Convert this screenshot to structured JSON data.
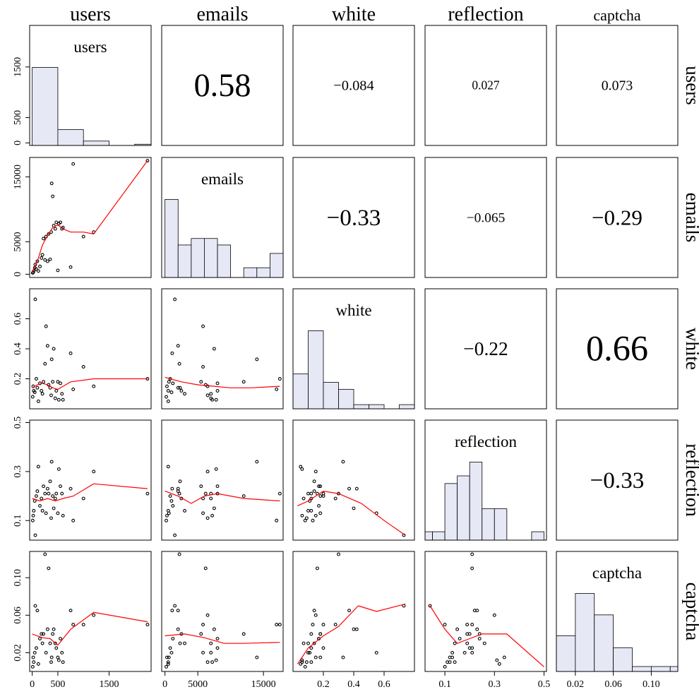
{
  "chart_data": {
    "type": "scatter",
    "subtype": "scatterplot-matrix",
    "variables": [
      "users",
      "emails",
      "white",
      "reflection",
      "captcha"
    ],
    "colors": {
      "histogram_fill": "#e6e8f6",
      "smoother": "#ff0000",
      "frame": "#000000",
      "points": "#000000"
    },
    "axes": {
      "users": {
        "range": [
          -50,
          2320
        ],
        "ticks": [
          0,
          500,
          1500
        ],
        "tick_labels": [
          "0",
          "500",
          "1500"
        ],
        "bottom_ticks": [
          0,
          500,
          1500
        ],
        "bottom_tick_labels": [
          "0",
          "500",
          "1500"
        ]
      },
      "emails": {
        "range": [
          -500,
          18000
        ],
        "ticks": [
          0,
          5000,
          15000
        ],
        "tick_labels": [
          "0",
          "5000",
          "15000"
        ],
        "bottom_ticks": [
          0,
          5000,
          15000
        ],
        "bottom_tick_labels": [
          "0",
          "5000",
          "15000"
        ]
      },
      "white": {
        "range": [
          0,
          0.8
        ],
        "ticks": [
          0.2,
          0.4,
          0.6
        ],
        "tick_labels": [
          "0.2",
          "0.4",
          "0.6"
        ],
        "bottom_ticks": [
          0.2,
          0.4,
          0.6
        ],
        "bottom_tick_labels": [
          "0.2",
          "0.4",
          "0.6"
        ]
      },
      "reflection": {
        "range": [
          0.02,
          0.51
        ],
        "ticks": [
          0.1,
          0.3,
          0.5
        ],
        "tick_labels": [
          "0.1",
          "0.3",
          "0.5"
        ],
        "bottom_ticks": [
          0.1,
          0.3,
          0.5
        ],
        "bottom_tick_labels": [
          "0.1",
          "0.3",
          "0.5"
        ]
      },
      "captcha": {
        "range": [
          0.0,
          0.128
        ],
        "ticks": [
          0.02,
          0.06,
          0.1
        ],
        "tick_labels": [
          "0.02",
          "0.06",
          "0.10"
        ],
        "bottom_ticks": [
          0.02,
          0.06,
          0.1
        ],
        "bottom_tick_labels": [
          "0.02",
          "0.06",
          "0.10"
        ]
      }
    },
    "histograms": {
      "users": {
        "edges": [
          0,
          500,
          1000,
          1500,
          2000,
          2500
        ],
        "heights": [
          1600,
          325,
          90,
          0,
          25
        ]
      },
      "emails": {
        "edges": [
          0,
          2000,
          4000,
          6000,
          8000,
          10000,
          12000,
          14000,
          16000,
          18000
        ],
        "heights": [
          12,
          5,
          6,
          6,
          5,
          0,
          1.5,
          1.5,
          3.7
        ]
      },
      "white": {
        "edges": [
          0.0,
          0.1,
          0.2,
          0.3,
          0.4,
          0.5,
          0.6,
          0.7,
          0.8
        ],
        "heights": [
          5,
          11.2,
          3.8,
          2.8,
          0.6,
          0.6,
          0,
          0.6
        ]
      },
      "reflection": {
        "edges": [
          0.0,
          0.05,
          0.1,
          0.15,
          0.2,
          0.25,
          0.3,
          0.35,
          0.4,
          0.45,
          0.5
        ],
        "heights": [
          1.1,
          1.1,
          7.4,
          8.4,
          10.2,
          4.1,
          4.1,
          0,
          0,
          1.1
        ]
      },
      "captcha": {
        "edges": [
          0.0,
          0.02,
          0.04,
          0.06,
          0.08,
          0.1,
          0.12,
          0.14
        ],
        "heights": [
          6.5,
          14.2,
          10.3,
          4.3,
          0.9,
          0.9,
          0.9
        ]
      }
    },
    "correlations": [
      {
        "row": "users",
        "col": "emails",
        "value": "0.58"
      },
      {
        "row": "users",
        "col": "white",
        "value": "−0.084"
      },
      {
        "row": "users",
        "col": "reflection",
        "value": "0.027"
      },
      {
        "row": "users",
        "col": "captcha",
        "value": "0.073"
      },
      {
        "row": "emails",
        "col": "white",
        "value": "−0.33"
      },
      {
        "row": "emails",
        "col": "reflection",
        "value": "−0.065"
      },
      {
        "row": "emails",
        "col": "captcha",
        "value": "−0.29"
      },
      {
        "row": "white",
        "col": "reflection",
        "value": "−0.22"
      },
      {
        "row": "white",
        "col": "captcha",
        "value": "0.66"
      },
      {
        "row": "reflection",
        "col": "captcha",
        "value": "−0.33"
      }
    ],
    "observations": [
      {
        "users": 10,
        "emails": 200,
        "white": 0.08,
        "reflection": 0.1,
        "captcha": 0.005
      },
      {
        "users": 30,
        "emails": 500,
        "white": 0.12,
        "reflection": 0.14,
        "captcha": 0.01
      },
      {
        "users": 50,
        "emails": 1000,
        "white": 0.11,
        "reflection": 0.18,
        "captcha": 0.02
      },
      {
        "users": 20,
        "emails": 300,
        "white": 0.15,
        "reflection": 0.12,
        "captcha": 0.015
      },
      {
        "users": 80,
        "emails": 800,
        "white": 0.2,
        "reflection": 0.2,
        "captcha": 0.025
      },
      {
        "users": 60,
        "emails": 1500,
        "white": 0.73,
        "reflection": 0.04,
        "captcha": 0.07
      },
      {
        "users": 100,
        "emails": 2000,
        "white": 0.14,
        "reflection": 0.22,
        "captcha": 0.065
      },
      {
        "users": 120,
        "emails": 500,
        "white": 0.05,
        "reflection": 0.32,
        "captcha": 0.008
      },
      {
        "users": 150,
        "emails": 1200,
        "white": 0.17,
        "reflection": 0.16,
        "captcha": 0.035
      },
      {
        "users": 180,
        "emails": 2500,
        "white": 0.12,
        "reflection": 0.19,
        "captcha": 0.04
      },
      {
        "users": 200,
        "emails": 3000,
        "white": 0.1,
        "reflection": 0.14,
        "captcha": 0.03
      },
      {
        "users": 220,
        "emails": 5500,
        "white": 0.18,
        "reflection": 0.24,
        "captcha": 0.04
      },
      {
        "users": 250,
        "emails": 2200,
        "white": 0.3,
        "reflection": 0.21,
        "captcha": 0.125
      },
      {
        "users": 270,
        "emails": 5800,
        "white": 0.55,
        "reflection": 0.13,
        "captcha": 0.02
      },
      {
        "users": 300,
        "emails": 2000,
        "white": 0.42,
        "reflection": 0.23,
        "captcha": 0.045
      },
      {
        "users": 320,
        "emails": 6200,
        "white": 0.16,
        "reflection": 0.21,
        "captcha": 0.11
      },
      {
        "users": 350,
        "emails": 2300,
        "white": 0.14,
        "reflection": 0.26,
        "captcha": 0.03
      },
      {
        "users": 370,
        "emails": 6500,
        "white": 0.09,
        "reflection": 0.11,
        "captcha": 0.01
      },
      {
        "users": 380,
        "emails": 14000,
        "white": 0.33,
        "reflection": 0.34,
        "captcha": 0.015
      },
      {
        "users": 400,
        "emails": 12000,
        "white": 0.18,
        "reflection": 0.2,
        "captcha": 0.04
      },
      {
        "users": 420,
        "emails": 7500,
        "white": 0.4,
        "reflection": 0.15,
        "captcha": 0.045
      },
      {
        "users": 450,
        "emails": 7000,
        "white": 0.07,
        "reflection": 0.19,
        "captcha": 0.03
      },
      {
        "users": 470,
        "emails": 8000,
        "white": 0.12,
        "reflection": 0.21,
        "captcha": 0.025
      },
      {
        "users": 500,
        "emails": 600,
        "white": 0.18,
        "reflection": 0.13,
        "captcha": 0.015
      },
      {
        "users": 520,
        "emails": 7800,
        "white": 0.06,
        "reflection": 0.31,
        "captcha": 0.012
      },
      {
        "users": 550,
        "emails": 8000,
        "white": 0.17,
        "reflection": 0.24,
        "captcha": 0.035
      },
      {
        "users": 580,
        "emails": 7000,
        "white": 0.1,
        "reflection": 0.21,
        "captcha": 0.02
      },
      {
        "users": 600,
        "emails": 7200,
        "white": 0.06,
        "reflection": 0.12,
        "captcha": 0.01
      },
      {
        "users": 750,
        "emails": 1100,
        "white": 0.37,
        "reflection": 0.23,
        "captcha": 0.065
      },
      {
        "users": 800,
        "emails": 17000,
        "white": 0.13,
        "reflection": 0.1,
        "captcha": 0.05
      },
      {
        "users": 1000,
        "emails": 5800,
        "white": 0.28,
        "reflection": 0.19,
        "captcha": 0.05
      },
      {
        "users": 1200,
        "emails": 6500,
        "white": 0.15,
        "reflection": 0.3,
        "captcha": 0.06
      },
      {
        "users": 2250,
        "emails": 17500,
        "white": 0.2,
        "reflection": 0.21,
        "captcha": 0.05
      }
    ],
    "smoothers": {
      "users": {
        "emails": [
          [
            0,
            300
          ],
          [
            100,
            2000
          ],
          [
            200,
            4500
          ],
          [
            300,
            6000
          ],
          [
            400,
            7200
          ],
          [
            500,
            7600
          ],
          [
            600,
            7000
          ],
          [
            750,
            6500
          ],
          [
            1000,
            6500
          ],
          [
            1200,
            6200
          ],
          [
            2250,
            17500
          ]
        ],
        "white": [
          [
            0,
            0.14
          ],
          [
            100,
            0.16
          ],
          [
            200,
            0.17
          ],
          [
            300,
            0.16
          ],
          [
            400,
            0.14
          ],
          [
            500,
            0.13
          ],
          [
            750,
            0.18
          ],
          [
            1200,
            0.2
          ],
          [
            2250,
            0.2
          ]
        ],
        "reflection": [
          [
            0,
            0.19
          ],
          [
            150,
            0.18
          ],
          [
            300,
            0.19
          ],
          [
            450,
            0.18
          ],
          [
            600,
            0.19
          ],
          [
            800,
            0.2
          ],
          [
            1200,
            0.25
          ],
          [
            2250,
            0.23
          ]
        ],
        "captcha": [
          [
            0,
            0.04
          ],
          [
            200,
            0.036
          ],
          [
            350,
            0.035
          ],
          [
            500,
            0.028
          ],
          [
            750,
            0.045
          ],
          [
            1200,
            0.063
          ],
          [
            2250,
            0.053
          ]
        ]
      },
      "emails": {
        "white": [
          [
            0,
            0.21
          ],
          [
            2500,
            0.18
          ],
          [
            5000,
            0.16
          ],
          [
            7500,
            0.15
          ],
          [
            10000,
            0.14
          ],
          [
            13000,
            0.14
          ],
          [
            17500,
            0.15
          ]
        ],
        "reflection": [
          [
            0,
            0.22
          ],
          [
            2000,
            0.2
          ],
          [
            4000,
            0.17
          ],
          [
            6000,
            0.2
          ],
          [
            8000,
            0.21
          ],
          [
            12000,
            0.19
          ],
          [
            17500,
            0.18
          ]
        ],
        "captcha": [
          [
            0,
            0.038
          ],
          [
            3000,
            0.04
          ],
          [
            6000,
            0.036
          ],
          [
            9000,
            0.03
          ],
          [
            12000,
            0.03
          ],
          [
            17500,
            0.031
          ]
        ]
      },
      "white": {
        "reflection": [
          [
            0.03,
            0.16
          ],
          [
            0.1,
            0.18
          ],
          [
            0.2,
            0.22
          ],
          [
            0.3,
            0.21
          ],
          [
            0.45,
            0.17
          ],
          [
            0.6,
            0.1
          ],
          [
            0.74,
            0.04
          ]
        ],
        "captcha": [
          [
            0.03,
            0.008
          ],
          [
            0.1,
            0.025
          ],
          [
            0.2,
            0.038
          ],
          [
            0.3,
            0.048
          ],
          [
            0.43,
            0.07
          ],
          [
            0.55,
            0.064
          ],
          [
            0.74,
            0.072
          ]
        ]
      },
      "reflection": {
        "captcha": [
          [
            0.04,
            0.07
          ],
          [
            0.1,
            0.045
          ],
          [
            0.15,
            0.03
          ],
          [
            0.2,
            0.035
          ],
          [
            0.25,
            0.04
          ],
          [
            0.35,
            0.04
          ],
          [
            0.5,
            0.005
          ]
        ]
      }
    }
  }
}
